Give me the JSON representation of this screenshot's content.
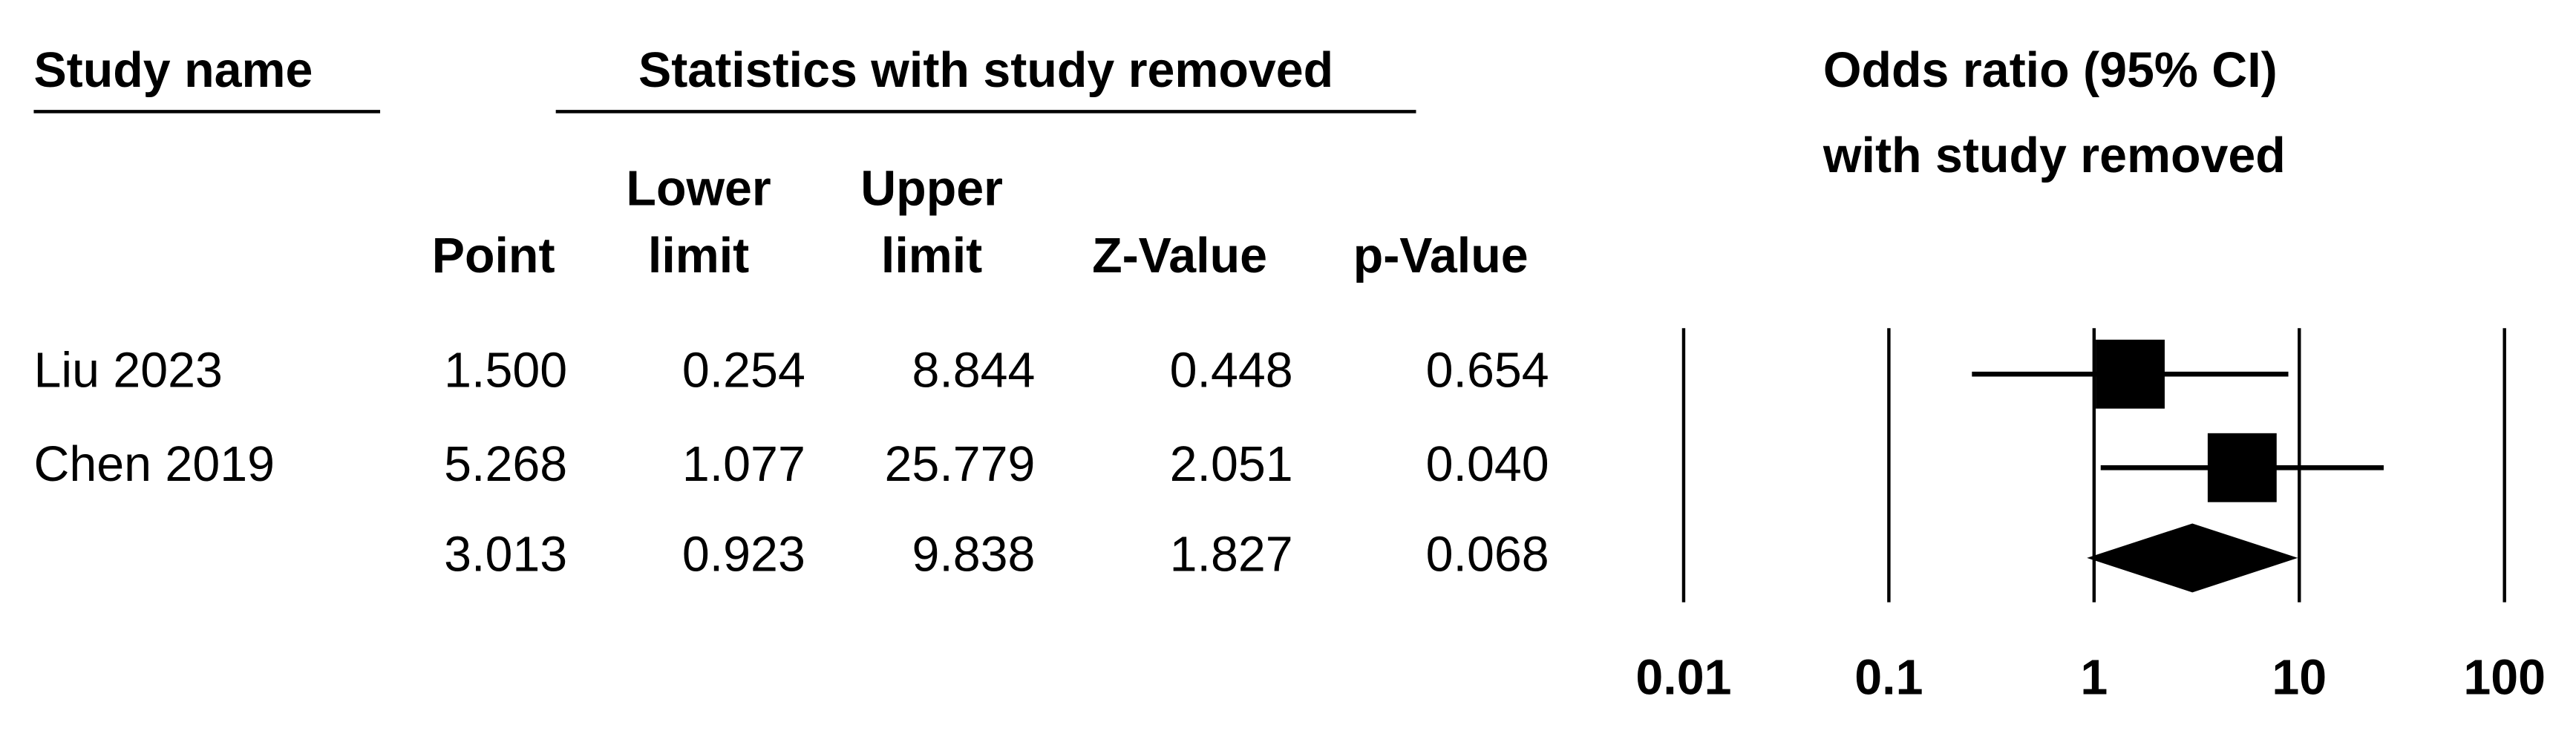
{
  "chart_data": {
    "type": "forest",
    "study_header": "Study name",
    "group_header": "Statistics with study removed",
    "rows": [
      "Liu 2023",
      "Chen 2019",
      null
    ],
    "columns": [
      {
        "header": [
          "Point"
        ],
        "values": [
          1.5,
          5.268,
          3.013
        ],
        "value_labels": [
          "1.500",
          "5.268",
          "3.013"
        ]
      },
      {
        "header": [
          "Lower",
          "limit"
        ],
        "values": [
          0.254,
          1.077,
          0.923
        ],
        "value_labels": [
          "0.254",
          "1.077",
          "0.923"
        ]
      },
      {
        "header": [
          "Upper",
          "limit"
        ],
        "values": [
          8.844,
          25.779,
          9.838
        ],
        "value_labels": [
          "8.844",
          "25.779",
          "9.838"
        ]
      },
      {
        "header": [
          "Z-Value"
        ],
        "values": [
          0.448,
          2.051,
          1.827
        ],
        "value_labels": [
          "0.448",
          "2.051",
          "1.827"
        ]
      },
      {
        "header": [
          "p-Value"
        ],
        "values": [
          0.654,
          0.04,
          0.068
        ],
        "value_labels": [
          "0.654",
          "0.040",
          "0.068"
        ]
      }
    ],
    "plot_title": [
      "Odds ratio (95% CI)",
      "with study removed"
    ],
    "log_scale": true,
    "xlim": [
      0.01,
      100
    ],
    "xticks": [
      0.01,
      0.1,
      1,
      10,
      100
    ],
    "grid": true,
    "color": "#000000"
  }
}
